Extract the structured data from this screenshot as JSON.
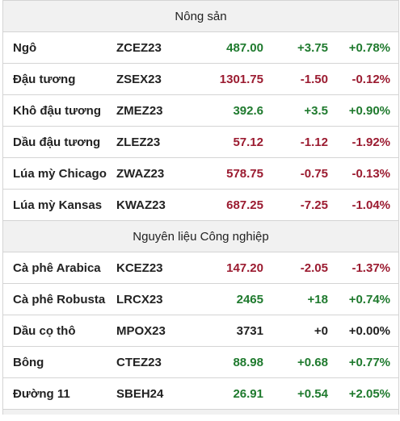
{
  "sections": [
    {
      "title": "Nông sản",
      "rows": [
        {
          "name": "Ngô",
          "code": "ZCEZ23",
          "price": "487.00",
          "change": "+3.75",
          "pct": "+0.78%",
          "dir": "up"
        },
        {
          "name": "Đậu tương",
          "code": "ZSEX23",
          "price": "1301.75",
          "change": "-1.50",
          "pct": "-0.12%",
          "dir": "down"
        },
        {
          "name": "Khô đậu tương",
          "code": "ZMEZ23",
          "price": "392.6",
          "change": "+3.5",
          "pct": "+0.90%",
          "dir": "up"
        },
        {
          "name": "Dầu đậu tương",
          "code": "ZLEZ23",
          "price": "57.12",
          "change": "-1.12",
          "pct": "-1.92%",
          "dir": "down"
        },
        {
          "name": "Lúa mỳ Chicago",
          "code": "ZWAZ23",
          "price": "578.75",
          "change": "-0.75",
          "pct": "-0.13%",
          "dir": "down"
        },
        {
          "name": "Lúa mỳ Kansas",
          "code": "KWAZ23",
          "price": "687.25",
          "change": "-7.25",
          "pct": "-1.04%",
          "dir": "down"
        }
      ]
    },
    {
      "title": "Nguyên liệu Công nghiệp",
      "rows": [
        {
          "name": "Cà phê Arabica",
          "code": "KCEZ23",
          "price": "147.20",
          "change": "-2.05",
          "pct": "-1.37%",
          "dir": "down"
        },
        {
          "name": "Cà phê Robusta",
          "code": "LRCX23",
          "price": "2465",
          "change": "+18",
          "pct": "+0.74%",
          "dir": "up"
        },
        {
          "name": "Dầu cọ thô",
          "code": "MPOX23",
          "price": "3731",
          "change": "+0",
          "pct": "+0.00%",
          "dir": "flat"
        },
        {
          "name": "Bông",
          "code": "CTEZ23",
          "price": "88.98",
          "change": "+0.68",
          "pct": "+0.77%",
          "dir": "up"
        },
        {
          "name": "Đường 11",
          "code": "SBEH24",
          "price": "26.91",
          "change": "+0.54",
          "pct": "+2.05%",
          "dir": "up"
        }
      ]
    }
  ],
  "colors": {
    "up": "#1f7a2e",
    "down": "#9b1b30",
    "flat": "#222222"
  }
}
